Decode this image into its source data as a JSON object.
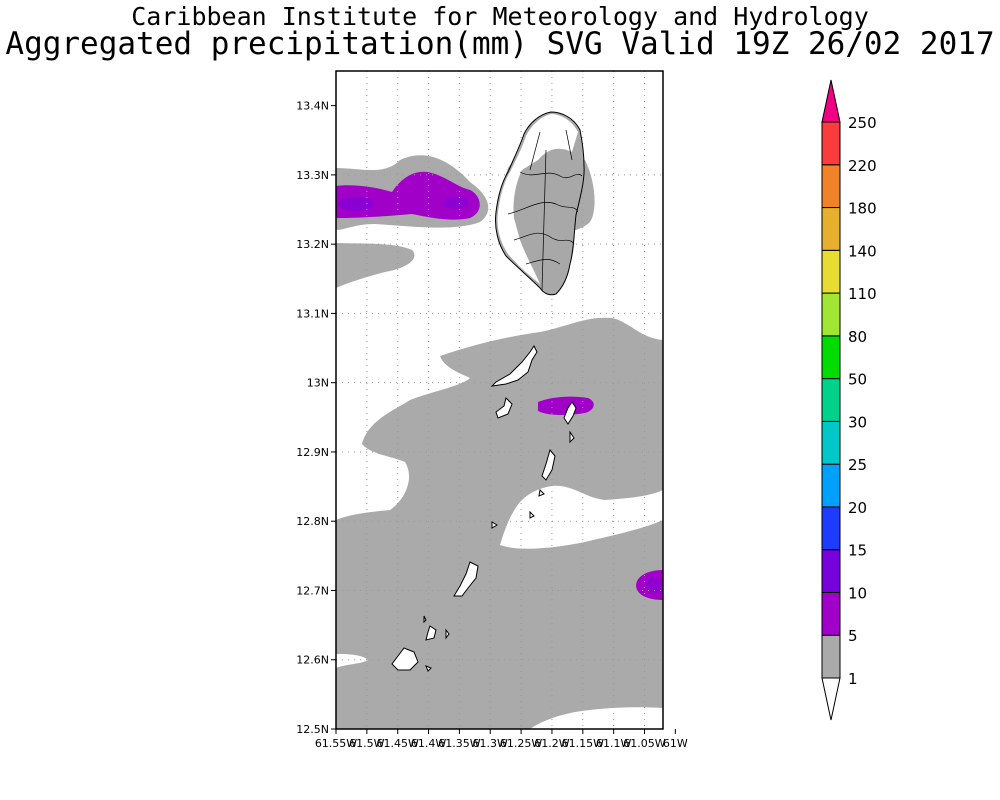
{
  "header": {
    "institute": "Caribbean Institute for Meteorology and Hydrology",
    "product": "Aggregated precipitation(mm) SVG Valid 19Z 26/02 2017"
  },
  "map": {
    "lat_ticks": [
      "13.4N",
      "13.3N",
      "13.2N",
      "13.1N",
      "13N",
      "12.9N",
      "12.8N",
      "12.7N",
      "12.6N",
      "12.5N"
    ],
    "lon_ticks": [
      "61.55W",
      "61.5W",
      "61.45W",
      "61.4W",
      "61.35W",
      "61.3W",
      "61.25W",
      "61.2W",
      "61.15W",
      "61.1W",
      "61.05W",
      "61W"
    ],
    "lat_range": [
      12.5,
      13.45
    ],
    "lon_range": [
      -61.55,
      -61.02
    ]
  },
  "colorbar": {
    "labels": [
      "1",
      "5",
      "10",
      "15",
      "20",
      "25",
      "30",
      "50",
      "80",
      "110",
      "140",
      "180",
      "220",
      "250"
    ],
    "colors": [
      "#ffffff",
      "#aaaaaa",
      "#a000c8",
      "#7800dc",
      "#1e3cff",
      "#00a0ff",
      "#00c8c8",
      "#00d28c",
      "#00dc00",
      "#a0e632",
      "#e6dc32",
      "#e6af2d",
      "#f08228",
      "#fa3c3c",
      "#f00082"
    ]
  },
  "colors": {
    "light_precip": "#aaaaaa",
    "moderate_precip": "#a000c8",
    "heavier_precip": "#7800dc",
    "island_fill": "#a8a8a8"
  }
}
